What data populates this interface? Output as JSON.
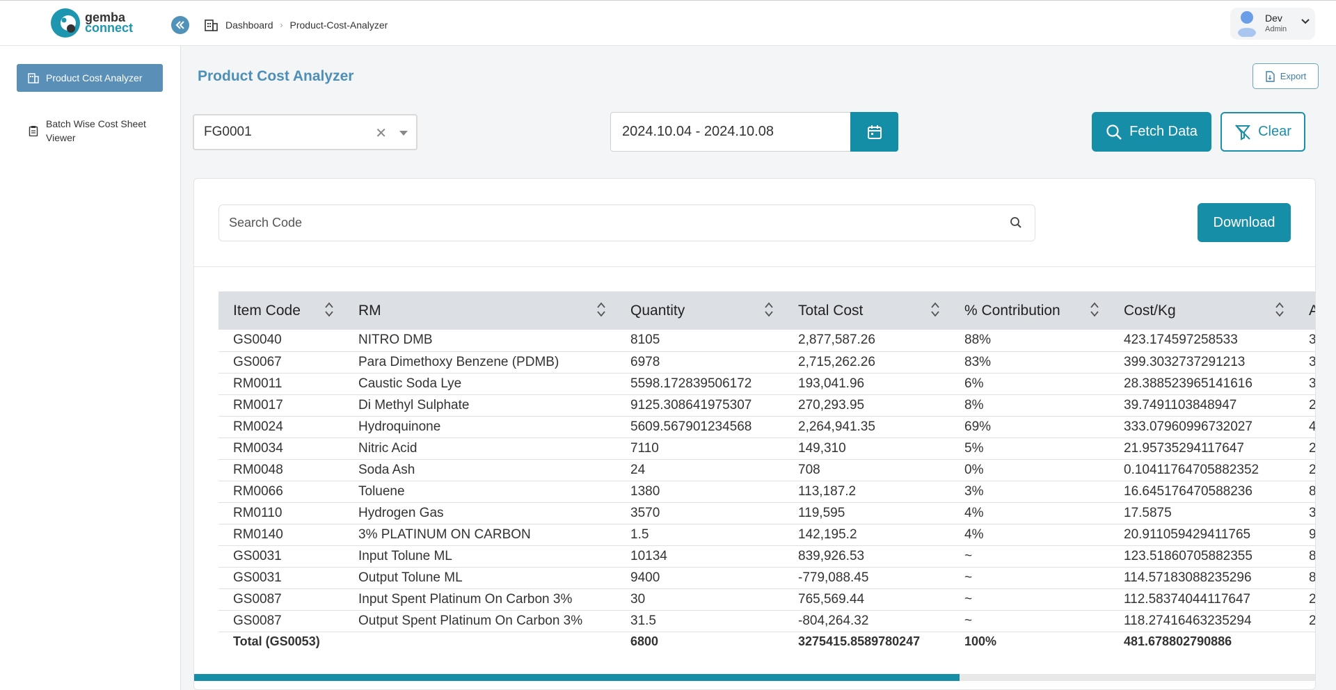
{
  "logo": {
    "line1": "gemba",
    "line2": "connect"
  },
  "breadcrumb": {
    "home": "Dashboard",
    "current": "Product-Cost-Analyzer"
  },
  "user": {
    "name": "Dev",
    "role": "Admin"
  },
  "sidebar": {
    "items": [
      {
        "label": "Product Cost Analyzer"
      },
      {
        "label": "Batch Wise Cost Sheet Viewer"
      }
    ]
  },
  "page": {
    "title": "Product Cost Analyzer",
    "export_label": "Export"
  },
  "filters": {
    "product_value": "FG0001",
    "date_range": "2024.10.04 - 2024.10.08",
    "fetch_label": "Fetch Data",
    "clear_label": "Clear"
  },
  "search": {
    "placeholder": "Search Code",
    "download_label": "Download"
  },
  "table": {
    "columns": [
      "Item Code",
      "RM",
      "Quantity",
      "Total Cost",
      "% Contribution",
      "Cost/Kg",
      "A"
    ],
    "rows": [
      [
        "GS0040",
        "NITRO DMB",
        "8105",
        "2,877,587.26",
        "88%",
        "423.174597258533",
        "3"
      ],
      [
        "GS0067",
        "Para Dimethoxy Benzene (PDMB)",
        "6978",
        "2,715,262.26",
        "83%",
        "399.3032737291213",
        "3"
      ],
      [
        "RM0011",
        "Caustic Soda Lye",
        "5598.172839506172",
        "193,041.96",
        "6%",
        "28.388523965141616",
        "3"
      ],
      [
        "RM0017",
        "Di Methyl Sulphate",
        "9125.308641975307",
        "270,293.95",
        "8%",
        "39.7491103848947",
        "2"
      ],
      [
        "RM0024",
        "Hydroquinone",
        "5609.567901234568",
        "2,264,941.35",
        "69%",
        "333.07960996732027",
        "4"
      ],
      [
        "RM0034",
        "Nitric Acid",
        "7110",
        "149,310",
        "5%",
        "21.95735294117647",
        "2"
      ],
      [
        "RM0048",
        "Soda Ash",
        "24",
        "708",
        "0%",
        "0.10411764705882352",
        "2"
      ],
      [
        "RM0066",
        "Toluene",
        "1380",
        "113,187.2",
        "3%",
        "16.645176470588236",
        "8"
      ],
      [
        "RM0110",
        "Hydrogen Gas",
        "3570",
        "119,595",
        "4%",
        "17.5875",
        "3"
      ],
      [
        "RM0140",
        "3% PLATINUM ON CARBON",
        "1.5",
        "142,195.2",
        "4%",
        "20.911059429411765",
        "9"
      ],
      [
        "GS0031",
        "Input Tolune ML",
        "10134",
        "839,926.53",
        "~",
        "123.51860705882355",
        "8"
      ],
      [
        "GS0031",
        "Output Tolune ML",
        "9400",
        "-779,088.45",
        "~",
        "114.57183088235296",
        "8"
      ],
      [
        "GS0087",
        "Input Spent Platinum On Carbon 3%",
        "30",
        "765,569.44",
        "~",
        "112.58374044117647",
        "2"
      ],
      [
        "GS0087",
        "Output Spent Platinum On Carbon 3%",
        "31.5",
        "-804,264.32",
        "~",
        "118.27416463235294",
        "2"
      ]
    ],
    "total": [
      "Total (GS0053)",
      "",
      "6800",
      "3275415.8589780247",
      "100%",
      "481.678802790886",
      ""
    ]
  },
  "colors": {
    "accent": "#178ea8",
    "title": "#4d8fb6",
    "sidebar_active": "#5a90b8"
  }
}
